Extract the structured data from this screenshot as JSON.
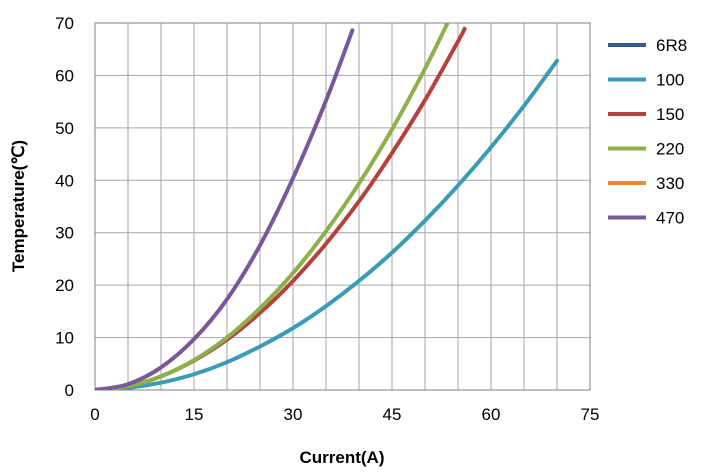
{
  "chart_data": {
    "type": "line",
    "title": "",
    "xlabel": "Current(A)",
    "ylabel": "Temperature(℃)",
    "xlim": [
      0,
      75
    ],
    "ylim": [
      0,
      70
    ],
    "xticks": [
      0,
      15,
      30,
      45,
      60,
      75
    ],
    "yticks": [
      0,
      10,
      20,
      30,
      40,
      50,
      60,
      70
    ],
    "grid": true,
    "legend_position": "right",
    "series": [
      {
        "name": "6R8",
        "color": "#2F5D9A",
        "x": [],
        "y": []
      },
      {
        "name": "100",
        "color": "#3A9BB5",
        "x": [
          0,
          5,
          10,
          15,
          20,
          25,
          30,
          35,
          40,
          45,
          50,
          55,
          60,
          65,
          70
        ],
        "y": [
          0,
          0.4,
          1.4,
          3.0,
          5.3,
          8.3,
          11.8,
          16.0,
          20.8,
          26.2,
          32.3,
          39.0,
          46.3,
          54.2,
          62.8
        ]
      },
      {
        "name": "150",
        "color": "#B5413C",
        "x": [
          0,
          5,
          10,
          15,
          20,
          25,
          30,
          35,
          40,
          45,
          50,
          55,
          56
        ],
        "y": [
          0,
          0.7,
          2.6,
          5.6,
          9.6,
          14.7,
          20.8,
          27.9,
          36.0,
          45.2,
          55.3,
          66.5,
          68.9
        ]
      },
      {
        "name": "220",
        "color": "#8DB04A",
        "x": [
          0,
          5,
          10,
          15,
          20,
          25,
          30,
          35,
          40,
          45,
          50,
          54
        ],
        "y": [
          0,
          0.7,
          2.6,
          5.7,
          10.0,
          15.6,
          22.3,
          30.3,
          39.4,
          49.7,
          61.3,
          71.5
        ]
      },
      {
        "name": "330",
        "color": "#E8893A",
        "x": [],
        "y": []
      },
      {
        "name": "470",
        "color": "#7A569A",
        "x": [
          0,
          5,
          10,
          15,
          20,
          25,
          30,
          35,
          39
        ],
        "y": [
          0,
          1.1,
          4.3,
          9.7,
          17.3,
          27.6,
          40.4,
          55.2,
          68.6
        ]
      }
    ]
  }
}
